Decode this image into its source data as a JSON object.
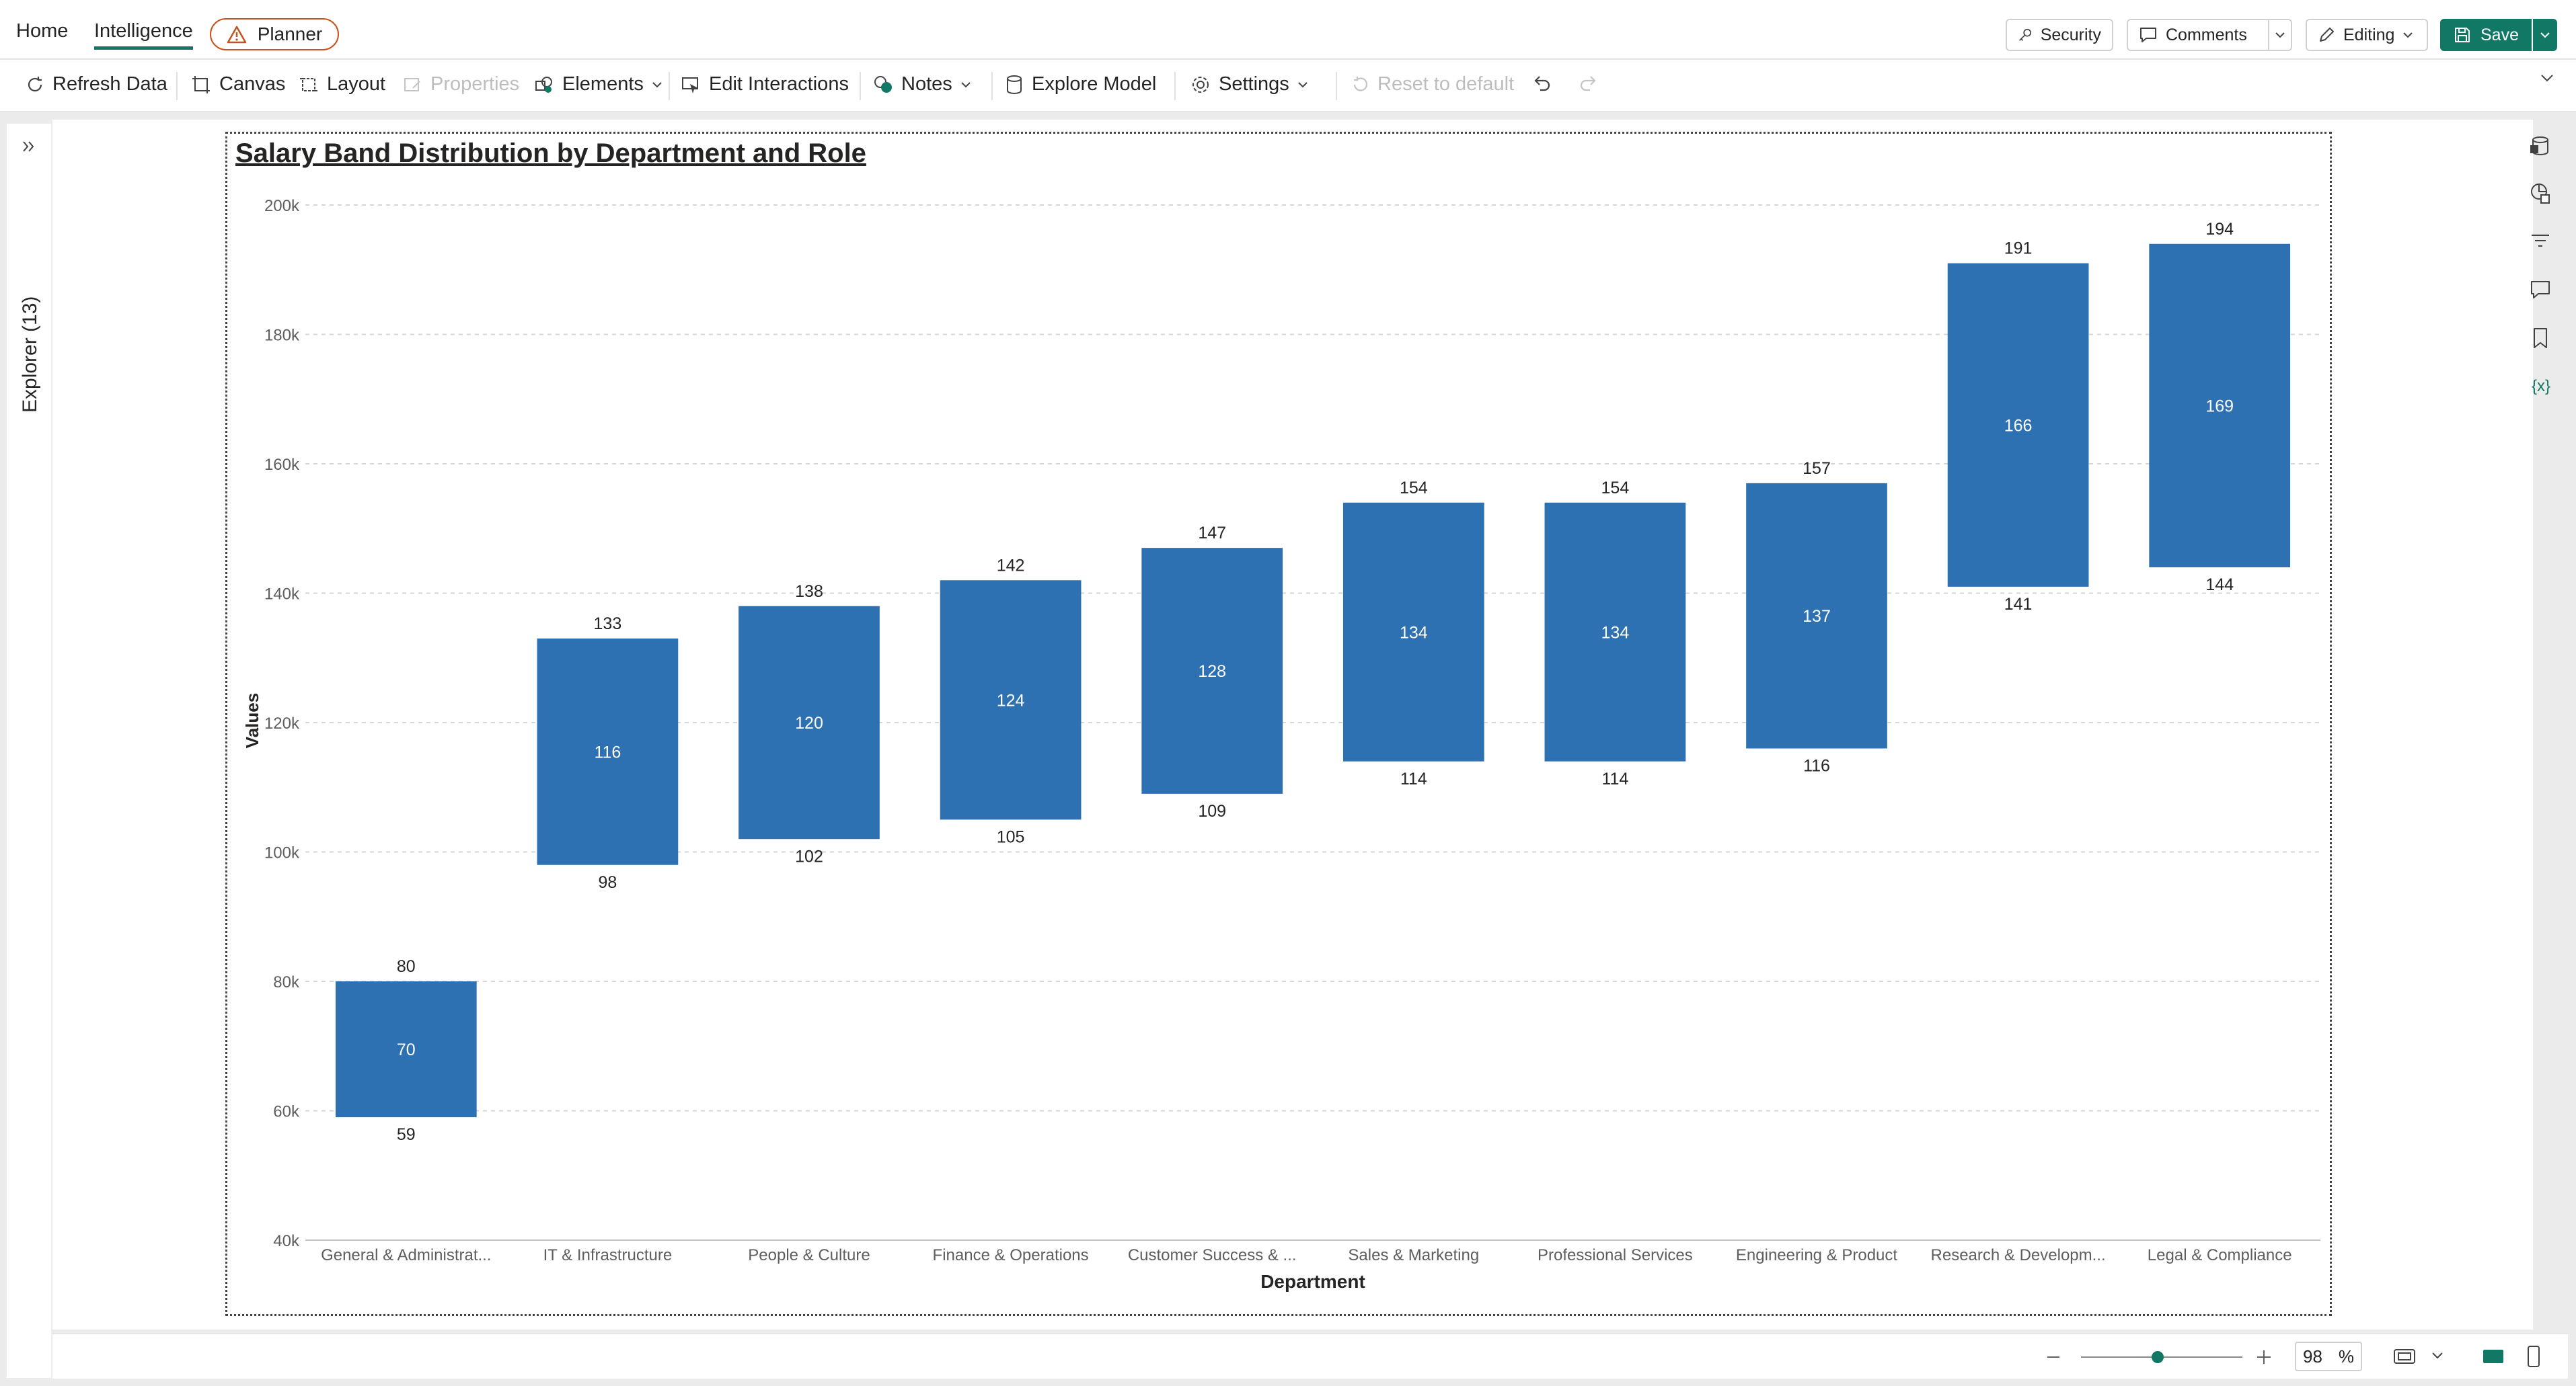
{
  "header": {
    "tabs": [
      {
        "label": "Home"
      },
      {
        "label": "Intelligence"
      }
    ],
    "planner_label": "Planner",
    "security_label": "Security",
    "comments_label": "Comments",
    "editing_label": "Editing",
    "save_label": "Save"
  },
  "toolbar": {
    "refresh": "Refresh Data",
    "canvas": "Canvas",
    "layout": "Layout",
    "properties": "Properties",
    "elements": "Elements",
    "edit_interactions": "Edit Interactions",
    "notes": "Notes",
    "explore_model": "Explore Model",
    "settings": "Settings",
    "reset": "Reset to default"
  },
  "explorer": {
    "label": "Explorer (13)"
  },
  "footer": {
    "zoom": "98",
    "zoom_unit": "%"
  },
  "colors": {
    "accent": "#117865",
    "bar": "#2e71b3",
    "warning": "#c4541d"
  },
  "icons": {
    "refresh": "refresh-icon",
    "canvas": "canvas-icon",
    "layout": "layout-icon",
    "properties": "properties-icon",
    "elements": "elements-icon",
    "interactions": "edit-interactions-icon",
    "notes": "notes-icon",
    "model": "database-icon",
    "settings": "gear-icon",
    "reset": "reset-icon",
    "undo": "undo-icon",
    "redo": "redo-icon"
  },
  "chart_data": {
    "type": "bar",
    "subtype": "floating-range",
    "title": "Salary Band Distribution by Department and Role",
    "xlabel": "Department",
    "ylabel": "Values",
    "ylim": [
      40000,
      200000
    ],
    "yticks": [
      "40k",
      "60k",
      "80k",
      "100k",
      "120k",
      "140k",
      "160k",
      "180k",
      "200k"
    ],
    "grid": true,
    "categories": [
      "General & Administrat...",
      "IT & Infrastructure",
      "People & Culture",
      "Finance & Operations",
      "Customer Success & ...",
      "Sales & Marketing",
      "Professional Services",
      "Engineering & Product",
      "Research & Developm...",
      "Legal & Compliance"
    ],
    "series": [
      {
        "values": [
          59,
          98,
          102,
          105,
          109,
          114,
          114,
          116,
          141,
          144
        ]
      },
      {
        "values": [
          70,
          116,
          120,
          124,
          128,
          134,
          134,
          137,
          166,
          169
        ]
      },
      {
        "values": [
          80,
          133,
          138,
          142,
          147,
          154,
          154,
          157,
          191,
          194
        ]
      }
    ],
    "value_unit_multiplier": 1000
  }
}
